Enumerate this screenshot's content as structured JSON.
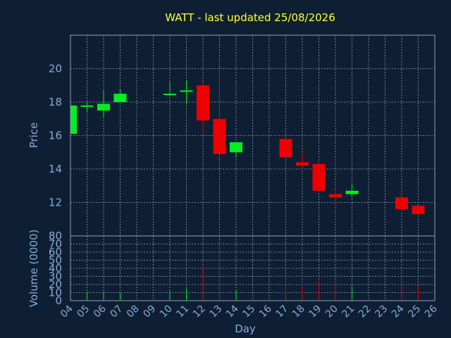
{
  "colors": {
    "background": "#0f1f33",
    "up": "#00ee22",
    "down": "#ee0000",
    "text": "#8aa8d8",
    "title": "#ffff33",
    "grid": "#8aa0b8"
  },
  "chart_data": {
    "type": "candlestick",
    "title": "WATT - last updated 25/08/2026",
    "xlabel": "Day",
    "price_panel": {
      "ylabel": "Price",
      "ylim": [
        10,
        22
      ],
      "yticks": [
        12,
        14,
        16,
        18,
        20
      ]
    },
    "volume_panel": {
      "ylabel": "Volume (0000)",
      "ylim": [
        0,
        80
      ],
      "yticks": [
        0,
        10,
        20,
        30,
        40,
        50,
        60,
        70,
        80
      ]
    },
    "x_range": [
      4,
      26
    ],
    "x_ticks": [
      "04",
      "05",
      "06",
      "07",
      "08",
      "09",
      "10",
      "11",
      "12",
      "13",
      "14",
      "15",
      "16",
      "17",
      "18",
      "19",
      "20",
      "21",
      "22",
      "23",
      "24",
      "25",
      "26"
    ],
    "candles": [
      {
        "day": 4,
        "open": 16.1,
        "high": 17.9,
        "low": 16.1,
        "close": 17.8,
        "volume": 9
      },
      {
        "day": 5,
        "open": 17.8,
        "high": 18.0,
        "low": 17.4,
        "close": 17.8,
        "volume": 10
      },
      {
        "day": 6,
        "open": 17.5,
        "high": 18.7,
        "low": 17.1,
        "close": 17.9,
        "volume": 11
      },
      {
        "day": 7,
        "open": 18.0,
        "high": 18.8,
        "low": 18.0,
        "close": 18.5,
        "volume": 10
      },
      {
        "day": 10,
        "open": 18.5,
        "high": 19.2,
        "low": 18.4,
        "close": 18.5,
        "volume": 12
      },
      {
        "day": 11,
        "open": 18.7,
        "high": 19.3,
        "low": 17.9,
        "close": 18.7,
        "volume": 15
      },
      {
        "day": 12,
        "open": 19.0,
        "high": 19.2,
        "low": 16.2,
        "close": 16.9,
        "volume": 44
      },
      {
        "day": 13,
        "open": 17.0,
        "high": 20.0,
        "low": 14.9,
        "close": 14.9,
        "volume": 71
      },
      {
        "day": 14,
        "open": 15.0,
        "high": 15.6,
        "low": 14.7,
        "close": 15.6,
        "volume": 13
      },
      {
        "day": 17,
        "open": 15.8,
        "high": 15.8,
        "low": 14.7,
        "close": 14.7,
        "volume": 20
      },
      {
        "day": 18,
        "open": 14.4,
        "high": 15.0,
        "low": 14.0,
        "close": 14.2,
        "volume": 17
      },
      {
        "day": 19,
        "open": 14.3,
        "high": 14.4,
        "low": 12.7,
        "close": 12.7,
        "volume": 24
      },
      {
        "day": 20,
        "open": 12.5,
        "high": 12.8,
        "low": 11.8,
        "close": 12.3,
        "volume": 20
      },
      {
        "day": 21,
        "open": 12.5,
        "high": 13.1,
        "low": 12.3,
        "close": 12.7,
        "volume": 18
      },
      {
        "day": 24,
        "open": 12.3,
        "high": 12.5,
        "low": 11.5,
        "close": 11.6,
        "volume": 20
      },
      {
        "day": 25,
        "open": 11.8,
        "high": 11.8,
        "low": 11.2,
        "close": 11.3,
        "volume": 19
      }
    ]
  }
}
